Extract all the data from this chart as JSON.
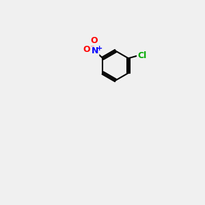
{
  "background_color": "#f0f0f0",
  "atom_colors": {
    "C": "#000000",
    "N": "#0000ff",
    "O": "#ff0000",
    "S": "#cccc00",
    "Cl": "#00aa00",
    "H": "#000000"
  },
  "font_size_atom": 9,
  "font_size_label": 8
}
